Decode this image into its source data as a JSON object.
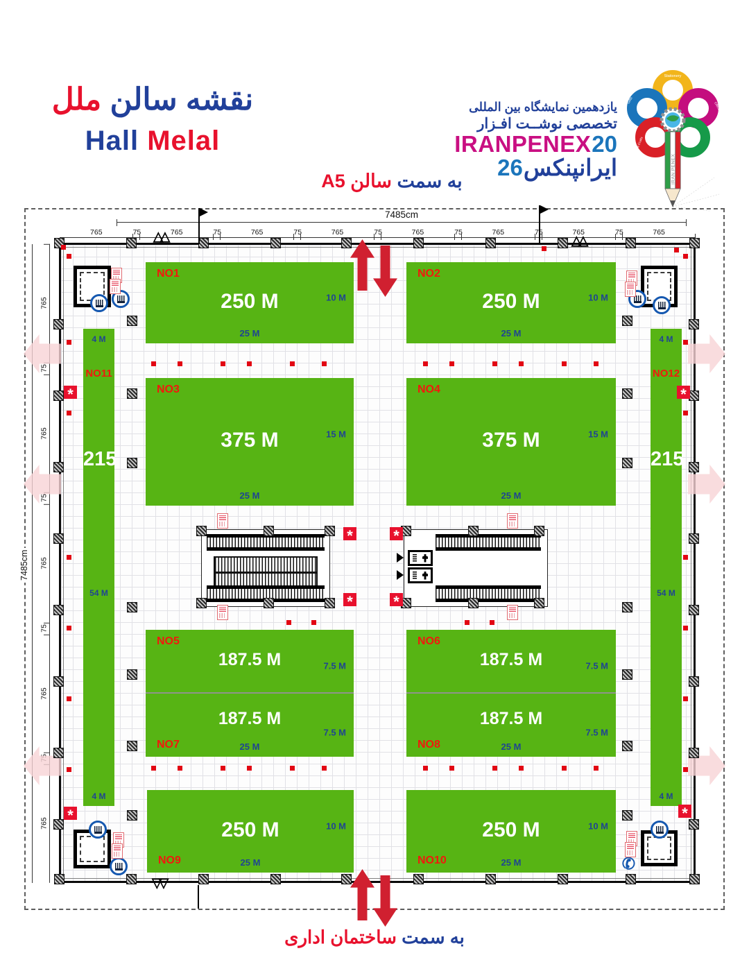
{
  "header": {
    "title_fa_blue": "نقشه سالن",
    "title_fa_red": "ملل",
    "title_en_blue": "Hall",
    "title_en_red": "Melal",
    "nav_top_blue": "به سمت",
    "nav_top_red": "سالن A5",
    "nav_bottom_blue": "به سمت",
    "nav_bottom_red": "ساختمان اداری"
  },
  "logo": {
    "line1": "یازدهمین نمایشگاه بین المللی",
    "line2": "تخصصی نوشــت افـزار",
    "brand_latin": "IRANPENEX",
    "year_top": "20",
    "year_bottom": "26",
    "brand_fa": "ایرانپنکس",
    "pencil_label": "IRAN PENEX",
    "petals": [
      "Stationery",
      "Office",
      "Toys & Entertainment",
      "Art & Crafts",
      "Gifts"
    ]
  },
  "plan": {
    "width_total": "7485cm",
    "height_total": "7485cm",
    "top_dims": [
      "765",
      "75",
      "765",
      "75",
      "765",
      "75",
      "765",
      "75",
      "765",
      "75",
      "765",
      "75",
      "765",
      "75",
      "765"
    ],
    "left_dims": [
      "765",
      "75",
      "765",
      "75",
      "765",
      "75",
      "765",
      "75",
      "765"
    ],
    "booths": [
      {
        "no": "NO1",
        "area": "250 M",
        "depth": "10 M",
        "width": "25 M"
      },
      {
        "no": "NO2",
        "area": "250 M",
        "depth": "10 M",
        "width": "25 M"
      },
      {
        "no": "NO3",
        "area": "375 M",
        "depth": "15 M",
        "width": "25 M"
      },
      {
        "no": "NO4",
        "area": "375 M",
        "depth": "15 M",
        "width": "25 M"
      },
      {
        "no": "NO5",
        "area": "187.5 M",
        "depth": "7.5 M"
      },
      {
        "no": "NO6",
        "area": "187.5 M",
        "depth": "7.5 M"
      },
      {
        "no": "NO7",
        "area": "187.5 M",
        "depth": "7.5 M",
        "width": "25 M"
      },
      {
        "no": "NO8",
        "area": "187.5 M",
        "depth": "7.5 M",
        "width": "25 M"
      },
      {
        "no": "NO9",
        "area": "250 M",
        "depth": "10 M",
        "width": "25 M"
      },
      {
        "no": "NO10",
        "area": "250 M",
        "depth": "10 M",
        "width": "25 M"
      }
    ],
    "strips": [
      {
        "no": "NO11",
        "area": "215",
        "top_label": "4 M",
        "mid_label": "54 M",
        "bottom_label": "4 M"
      },
      {
        "no": "NO12",
        "area": "215",
        "top_label": "4 M",
        "mid_label": "54 M",
        "bottom_label": "4 M"
      }
    ]
  },
  "colors": {
    "booth_green": "#57b414",
    "accent_red": "#e8112d",
    "dim_blue": "#1f4591",
    "brand_magenta": "#c90f82",
    "brand_blue": "#21409a",
    "arrow_red": "#d02030"
  }
}
